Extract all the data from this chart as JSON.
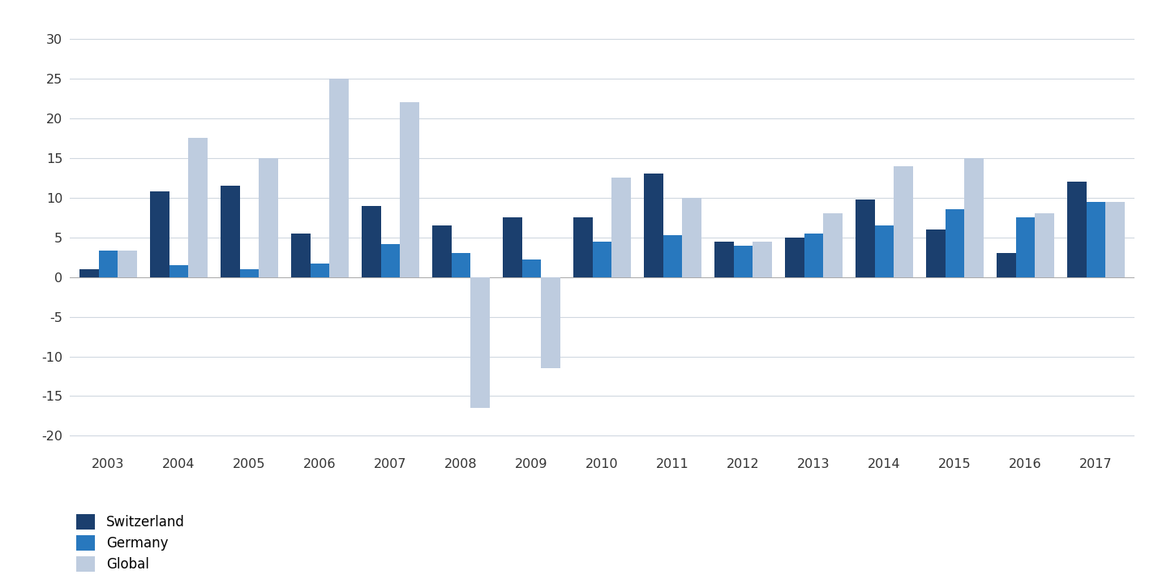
{
  "years": [
    2003,
    2004,
    2005,
    2006,
    2007,
    2008,
    2009,
    2010,
    2011,
    2012,
    2013,
    2014,
    2015,
    2016,
    2017
  ],
  "switzerland": [
    1.0,
    10.8,
    11.5,
    5.5,
    9.0,
    6.5,
    7.5,
    7.5,
    13.0,
    4.5,
    5.0,
    9.8,
    6.0,
    3.0,
    12.0
  ],
  "germany": [
    3.3,
    1.5,
    1.0,
    1.7,
    4.2,
    3.0,
    2.2,
    4.5,
    5.3,
    4.0,
    5.5,
    6.5,
    8.5,
    7.5,
    9.5
  ],
  "global": [
    3.3,
    17.5,
    15.0,
    25.0,
    22.0,
    -16.5,
    -11.5,
    12.5,
    10.0,
    4.5,
    8.0,
    14.0,
    15.0,
    8.0,
    9.5
  ],
  "color_switzerland": "#1b3f6e",
  "color_germany": "#2878be",
  "color_global": "#beccdf",
  "legend_labels": [
    "Switzerland",
    "Germany",
    "Global"
  ],
  "yticks": [
    -20,
    -15,
    -10,
    -5,
    0,
    5,
    10,
    15,
    20,
    25,
    30
  ],
  "ylim": [
    -22,
    32
  ],
  "bar_width": 0.27,
  "figsize": [
    14.28,
    7.14
  ],
  "dpi": 100
}
